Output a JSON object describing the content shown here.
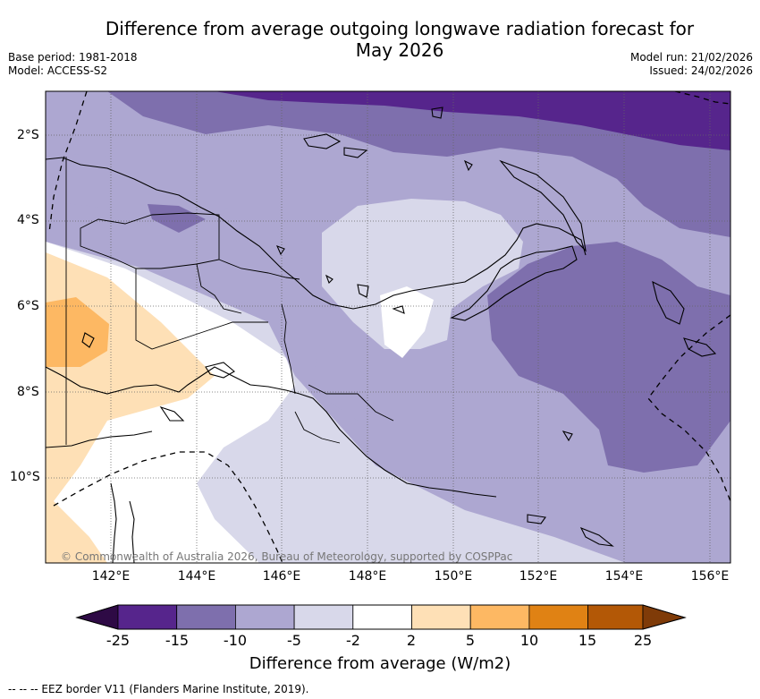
{
  "title_line1": "Difference from average outgoing longwave radiation forecast for",
  "title_line2": "May 2026",
  "meta": {
    "base_period": "Base period: 1981-2018",
    "model": "Model: ACCESS-S2",
    "model_run": "Model run: 21/02/2026",
    "issued": "Issued: 24/02/2026"
  },
  "map": {
    "lat_labels": [
      "2°S",
      "4°S",
      "6°S",
      "8°S",
      "10°S"
    ],
    "lon_labels": [
      "142°E",
      "144°E",
      "146°E",
      "148°E",
      "150°E",
      "152°E",
      "154°E",
      "156°E"
    ],
    "copyright": "© Commonwealth of Australia 2026, Bureau of Meteorology, supported by COSPPac"
  },
  "colorbar": {
    "title": "Difference from average (W/m2)",
    "levels": [
      "-25",
      "-15",
      "-10",
      "-5",
      "-2",
      "2",
      "5",
      "10",
      "15",
      "25"
    ],
    "colors": {
      "extend_low": "#2e0a45",
      "bin1": "#56258c",
      "bin2": "#7e6fad",
      "bin3": "#ada7d1",
      "bin4": "#d8d8ea",
      "bin5": "#ffffff",
      "bin6": "#fee0b6",
      "bin7": "#fdb863",
      "bin8": "#e08214",
      "bin9": "#b35806",
      "extend_high": "#7f3b08"
    }
  },
  "footer": "--  --  -- EEZ border V11 (Flanders Marine Institute, 2019)."
}
